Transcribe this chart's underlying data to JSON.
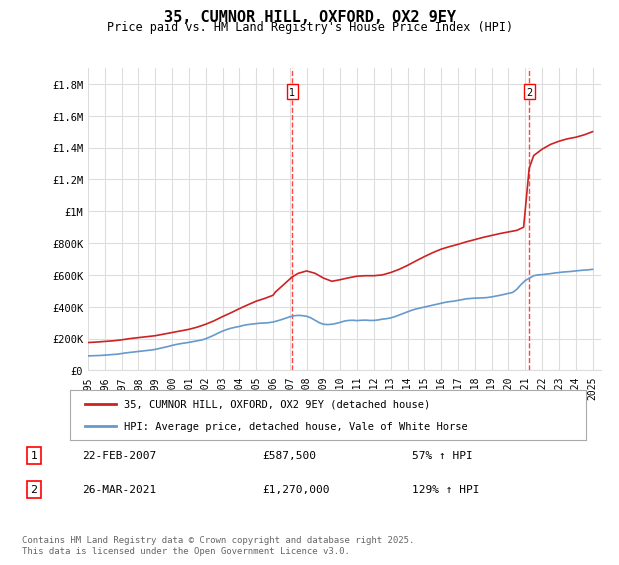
{
  "title": "35, CUMNOR HILL, OXFORD, OX2 9EY",
  "subtitle": "Price paid vs. HM Land Registry's House Price Index (HPI)",
  "ylabel_ticks": [
    "£0",
    "£200K",
    "£400K",
    "£600K",
    "£800K",
    "£1M",
    "£1.2M",
    "£1.4M",
    "£1.6M",
    "£1.8M"
  ],
  "ytick_values": [
    0,
    200000,
    400000,
    600000,
    800000,
    1000000,
    1200000,
    1400000,
    1600000,
    1800000
  ],
  "ylim": [
    0,
    1900000
  ],
  "xlim_start": 1995.0,
  "xlim_end": 2025.5,
  "year_ticks": [
    1995,
    1996,
    1997,
    1998,
    1999,
    2000,
    2001,
    2002,
    2003,
    2004,
    2005,
    2006,
    2007,
    2008,
    2009,
    2010,
    2011,
    2012,
    2013,
    2014,
    2015,
    2016,
    2017,
    2018,
    2019,
    2020,
    2021,
    2022,
    2023,
    2024,
    2025
  ],
  "hpi_color": "#6699cc",
  "price_color": "#cc2222",
  "vline_color": "#ff4444",
  "vline1_x": 2007.14,
  "vline2_x": 2021.23,
  "marker1_label": "1",
  "marker2_label": "2",
  "marker1_x": 2007.14,
  "marker1_y": 1750000,
  "marker2_x": 2021.23,
  "marker2_y": 1750000,
  "sale1_date": "22-FEB-2007",
  "sale1_price": "£587,500",
  "sale1_hpi": "57% ↑ HPI",
  "sale2_date": "26-MAR-2021",
  "sale2_price": "£1,270,000",
  "sale2_hpi": "129% ↑ HPI",
  "legend_line1": "35, CUMNOR HILL, OXFORD, OX2 9EY (detached house)",
  "legend_line2": "HPI: Average price, detached house, Vale of White Horse",
  "footer": "Contains HM Land Registry data © Crown copyright and database right 2025.\nThis data is licensed under the Open Government Licence v3.0.",
  "background_color": "#ffffff",
  "grid_color": "#dddddd",
  "hpi_years": [
    1995.0,
    1995.25,
    1995.5,
    1995.75,
    1996.0,
    1996.25,
    1996.5,
    1996.75,
    1997.0,
    1997.25,
    1997.5,
    1997.75,
    1998.0,
    1998.25,
    1998.5,
    1998.75,
    1999.0,
    1999.25,
    1999.5,
    1999.75,
    2000.0,
    2000.25,
    2000.5,
    2000.75,
    2001.0,
    2001.25,
    2001.5,
    2001.75,
    2002.0,
    2002.25,
    2002.5,
    2002.75,
    2003.0,
    2003.25,
    2003.5,
    2003.75,
    2004.0,
    2004.25,
    2004.5,
    2004.75,
    2005.0,
    2005.25,
    2005.5,
    2005.75,
    2006.0,
    2006.25,
    2006.5,
    2006.75,
    2007.0,
    2007.25,
    2007.5,
    2007.75,
    2008.0,
    2008.25,
    2008.5,
    2008.75,
    2009.0,
    2009.25,
    2009.5,
    2009.75,
    2010.0,
    2010.25,
    2010.5,
    2010.75,
    2011.0,
    2011.25,
    2011.5,
    2011.75,
    2012.0,
    2012.25,
    2012.5,
    2012.75,
    2013.0,
    2013.25,
    2013.5,
    2013.75,
    2014.0,
    2014.25,
    2014.5,
    2014.75,
    2015.0,
    2015.25,
    2015.5,
    2015.75,
    2016.0,
    2016.25,
    2016.5,
    2016.75,
    2017.0,
    2017.25,
    2017.5,
    2017.75,
    2018.0,
    2018.25,
    2018.5,
    2018.75,
    2019.0,
    2019.25,
    2019.5,
    2019.75,
    2020.0,
    2020.25,
    2020.5,
    2020.75,
    2021.0,
    2021.25,
    2021.5,
    2021.75,
    2022.0,
    2022.25,
    2022.5,
    2022.75,
    2023.0,
    2023.25,
    2023.5,
    2023.75,
    2024.0,
    2024.25,
    2024.5,
    2024.75,
    2025.0
  ],
  "hpi_values": [
    91000,
    92000,
    93000,
    94000,
    96000,
    98000,
    100000,
    102000,
    106000,
    110000,
    113000,
    116000,
    119000,
    122000,
    125000,
    128000,
    132000,
    138000,
    144000,
    150000,
    157000,
    163000,
    168000,
    172000,
    176000,
    181000,
    186000,
    191000,
    199000,
    210000,
    222000,
    235000,
    247000,
    257000,
    265000,
    271000,
    276000,
    283000,
    288000,
    291000,
    294000,
    297000,
    298000,
    300000,
    304000,
    311000,
    319000,
    328000,
    337000,
    343000,
    346000,
    344000,
    340000,
    330000,
    315000,
    300000,
    290000,
    288000,
    290000,
    295000,
    302000,
    310000,
    314000,
    315000,
    313000,
    315000,
    316000,
    314000,
    314000,
    317000,
    322000,
    325000,
    330000,
    338000,
    348000,
    358000,
    368000,
    378000,
    386000,
    392000,
    398000,
    404000,
    410000,
    416000,
    422000,
    428000,
    432000,
    435000,
    440000,
    445000,
    450000,
    452000,
    454000,
    455000,
    456000,
    458000,
    462000,
    467000,
    472000,
    478000,
    484000,
    490000,
    510000,
    540000,
    565000,
    580000,
    595000,
    600000,
    602000,
    605000,
    608000,
    612000,
    615000,
    618000,
    620000,
    622000,
    625000,
    628000,
    630000,
    632000,
    635000
  ],
  "price_years": [
    1995.0,
    1995.5,
    1996.0,
    1996.5,
    1997.0,
    1997.5,
    1998.0,
    1998.5,
    1999.0,
    1999.5,
    2000.0,
    2000.5,
    2001.0,
    2001.5,
    2002.0,
    2002.5,
    2003.0,
    2003.5,
    2004.0,
    2004.5,
    2005.0,
    2005.5,
    2006.0,
    2006.14,
    2007.14,
    2007.5,
    2008.0,
    2008.5,
    2009.0,
    2009.5,
    2010.0,
    2010.5,
    2011.0,
    2011.5,
    2012.0,
    2012.5,
    2013.0,
    2013.5,
    2014.0,
    2014.5,
    2015.0,
    2015.5,
    2016.0,
    2016.5,
    2017.0,
    2017.5,
    2018.0,
    2018.5,
    2019.0,
    2019.5,
    2020.0,
    2020.5,
    2020.9,
    2021.23,
    2021.5,
    2022.0,
    2022.5,
    2023.0,
    2023.5,
    2024.0,
    2024.5,
    2025.0
  ],
  "price_values": [
    175000,
    178000,
    182000,
    186000,
    192000,
    200000,
    206000,
    212000,
    218000,
    228000,
    238000,
    248000,
    258000,
    272000,
    290000,
    312000,
    338000,
    362000,
    388000,
    412000,
    435000,
    452000,
    472000,
    492000,
    587500,
    610000,
    625000,
    610000,
    580000,
    560000,
    570000,
    582000,
    592000,
    595000,
    595000,
    600000,
    615000,
    635000,
    660000,
    688000,
    715000,
    740000,
    762000,
    778000,
    792000,
    808000,
    822000,
    836000,
    848000,
    860000,
    870000,
    880000,
    900000,
    1270000,
    1350000,
    1390000,
    1420000,
    1440000,
    1455000,
    1465000,
    1480000,
    1500000
  ]
}
